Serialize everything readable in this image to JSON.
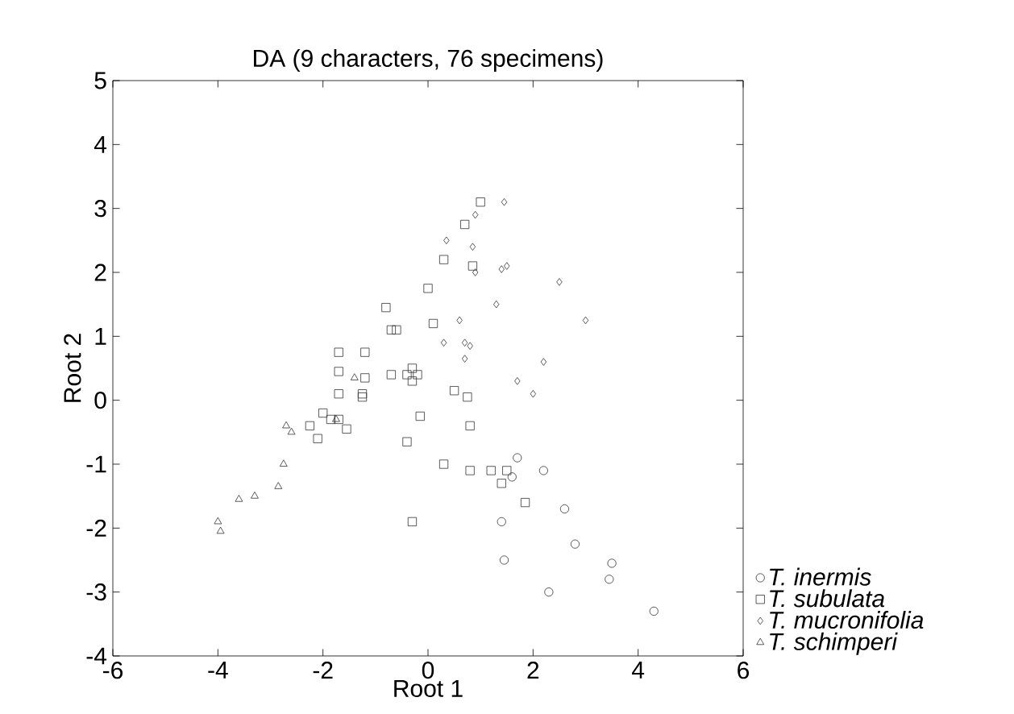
{
  "chart_data": {
    "type": "scatter",
    "title": "DA (9 characters, 76 specimens)",
    "xlabel": "Root 1",
    "ylabel": "Root 2",
    "xlim": [
      -6,
      6
    ],
    "ylim": [
      -4,
      5
    ],
    "xticks": [
      -6,
      -4,
      -2,
      0,
      2,
      4,
      6
    ],
    "yticks": [
      -4,
      -3,
      -2,
      -1,
      0,
      1,
      2,
      3,
      4,
      5
    ],
    "grid": false,
    "legend": "bottom right",
    "series": [
      {
        "name": "T. inermis",
        "color": "#333333",
        "marker": "circle",
        "x": [
          1.7,
          2.2,
          1.6,
          2.6,
          1.4,
          2.8,
          1.45,
          3.5,
          3.45,
          2.3,
          4.3
        ],
        "values": [
          -0.9,
          -1.1,
          -1.2,
          -1.7,
          -1.9,
          -2.25,
          -2.5,
          -2.55,
          -2.8,
          -3.0,
          -3.3
        ]
      },
      {
        "name": "T. subulata",
        "color": "#333333",
        "marker": "square",
        "x": [
          1.0,
          0.7,
          0.3,
          0.85,
          -0.8,
          0.0,
          -0.6,
          -0.7,
          0.1,
          -1.7,
          -1.2,
          -1.7,
          -1.7,
          -1.2,
          -0.7,
          -0.4,
          -0.2,
          -0.3,
          -0.3,
          -1.25,
          -1.25,
          0.5,
          0.75,
          -2.0,
          -1.7,
          -1.55,
          -1.85,
          -2.25,
          -2.1,
          -0.15,
          -0.4,
          0.8,
          0.3,
          0.8,
          1.2,
          1.4,
          1.85,
          -0.3,
          1.5
        ],
        "values": [
          3.1,
          2.75,
          2.2,
          2.1,
          1.45,
          1.75,
          1.1,
          1.1,
          1.2,
          0.75,
          0.75,
          0.45,
          0.1,
          0.35,
          0.4,
          0.4,
          0.4,
          0.5,
          0.3,
          0.05,
          0.1,
          0.15,
          0.05,
          -0.2,
          -0.3,
          -0.45,
          -0.3,
          -0.4,
          -0.6,
          -0.25,
          -0.65,
          -0.4,
          -1.0,
          -1.1,
          -1.1,
          -1.3,
          -1.6,
          -1.9,
          -1.1
        ]
      },
      {
        "name": "T. mucronifolia",
        "color": "#333333",
        "marker": "diamond",
        "x": [
          1.45,
          0.9,
          0.35,
          0.85,
          0.9,
          1.4,
          1.5,
          2.5,
          1.3,
          0.6,
          3.0,
          0.3,
          0.7,
          0.8,
          2.2,
          0.7,
          1.7,
          2.0
        ],
        "values": [
          3.1,
          2.9,
          2.5,
          2.4,
          2.0,
          2.05,
          2.1,
          1.85,
          1.5,
          1.25,
          1.25,
          0.9,
          0.9,
          0.85,
          0.6,
          0.65,
          0.3,
          0.1
        ]
      },
      {
        "name": "T. schimperi",
        "color": "#333333",
        "marker": "triangle",
        "x": [
          -1.4,
          -2.7,
          -2.6,
          -2.75,
          -2.85,
          -3.3,
          -3.6,
          -4.0,
          -3.95,
          -1.75
        ],
        "values": [
          0.35,
          -0.4,
          -0.5,
          -1.0,
          -1.35,
          -1.5,
          -1.55,
          -1.9,
          -2.05,
          -0.3
        ]
      }
    ]
  }
}
